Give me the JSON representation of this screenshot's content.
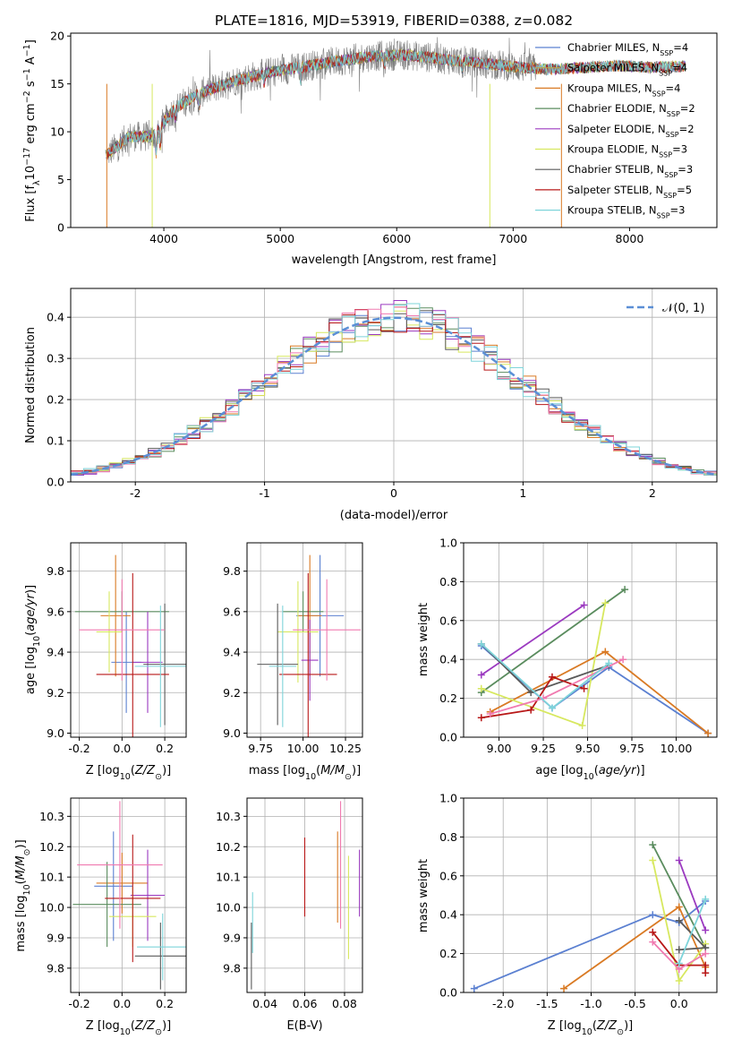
{
  "figure_title": "PLATE=1816, MJD=53919, FIBERID=0388, z=0.082",
  "colors": [
    "#5b80d1",
    "#d97a24",
    "#5a8c5e",
    "#9b3ac0",
    "#d7e85f",
    "#5a5a5a",
    "#b81818",
    "#f07ab0",
    "#7ed4da"
  ],
  "chart_data": [
    {
      "id": "spectrum",
      "type": "line",
      "title": "PLATE=1816, MJD=53919, FIBERID=0388, z=0.082",
      "xlabel": "wavelength [Angstrom, rest frame]",
      "ylabel": "Flux [fλ10⁻¹⁷ erg cm⁻² s⁻¹ A⁻¹]",
      "xlim": [
        3200,
        8750
      ],
      "ylim": [
        0,
        20.3
      ],
      "xticks": [
        4000,
        5000,
        6000,
        7000,
        8000
      ],
      "yticks": [
        0,
        5,
        10,
        15,
        20
      ],
      "grid": false,
      "legend_position": "right",
      "continuum_x": [
        3500,
        3700,
        3900,
        4100,
        4300,
        4600,
        4900,
        5200,
        5500,
        5800,
        6100,
        6400,
        6700,
        7000,
        7300,
        7600,
        7900,
        8200,
        8500
      ],
      "continuum_y": [
        7.5,
        9.5,
        9.5,
        12.5,
        14.0,
        15.3,
        16.2,
        16.8,
        17.4,
        17.9,
        18.0,
        17.6,
        17.2,
        16.8,
        16.5,
        16.7,
        16.9,
        16.7,
        16.9
      ],
      "observed": {
        "name": "data",
        "color": "#7f7f7f",
        "x_range": [
          3520,
          7200
        ]
      },
      "series": [
        {
          "name": "Chabrier MILES",
          "nssp": "4",
          "color": "#5b80d1"
        },
        {
          "name": "Salpeter MILES",
          "nssp": "4",
          "color": "#b8a64e"
        },
        {
          "name": "Kroupa MILES",
          "nssp": "4",
          "color": "#d97a24"
        },
        {
          "name": "Chabrier ELODIE",
          "nssp": "2",
          "color": "#5a8c5e"
        },
        {
          "name": "Salpeter ELODIE",
          "nssp": "2",
          "color": "#9b3ac0"
        },
        {
          "name": "Kroupa ELODIE",
          "nssp": "3",
          "color": "#d7e85f"
        },
        {
          "name": "Chabrier STELIB",
          "nssp": "3",
          "color": "#5a5a5a"
        },
        {
          "name": "Salpeter STELIB",
          "nssp": "5",
          "color": "#b81818"
        },
        {
          "name": "Kroupa STELIB",
          "nssp": "3",
          "color": "#7ed4da"
        }
      ]
    },
    {
      "id": "residuals",
      "type": "line",
      "xlabel": "(data-model)/error",
      "ylabel": "Normed distribution",
      "xlim": [
        -2.5,
        2.5
      ],
      "ylim": [
        0,
        0.47
      ],
      "xticks": [
        -2,
        -1,
        0,
        1,
        2
      ],
      "yticks": [
        0.0,
        0.1,
        0.2,
        0.3,
        0.4
      ],
      "grid": true,
      "legend_position": "top-right",
      "gaussian_label": "𝒩(0, 1)",
      "gaussian_color": "#5b8fd6",
      "histogram_bin_width": 0.1,
      "histogram_colors": [
        "#5b80d1",
        "#d97a24",
        "#5a8c5e",
        "#9b3ac0",
        "#d7e85f",
        "#5a5a5a",
        "#b81818",
        "#f07ab0",
        "#7ed4da"
      ]
    },
    {
      "id": "z-age",
      "type": "scatter",
      "xlabel": "Z [log10(Z/Z⊙)]",
      "ylabel": "age  [log10(age/yr)]",
      "xlim": [
        -0.24,
        0.3
      ],
      "ylim": [
        8.98,
        9.94
      ],
      "xticks": [
        -0.2,
        0.0,
        0.2
      ],
      "yticks": [
        9.0,
        9.2,
        9.4,
        9.6,
        9.8
      ],
      "grid": true,
      "points": [
        {
          "x": 0.02,
          "y": 9.35,
          "xerr": 0.07,
          "yerr": 0.25
        },
        {
          "x": -0.03,
          "y": 9.58,
          "xerr": 0.07,
          "yerr": 0.3
        },
        {
          "x": 0.0,
          "y": 9.6,
          "xerr": 0.22,
          "yerr": 0.1
        },
        {
          "x": 0.12,
          "y": 9.35,
          "xerr": 0.07,
          "yerr": 0.25
        },
        {
          "x": -0.06,
          "y": 9.5,
          "xerr": 0.06,
          "yerr": 0.2
        },
        {
          "x": 0.2,
          "y": 9.34,
          "xerr": 0.1,
          "yerr": 0.3
        },
        {
          "x": 0.05,
          "y": 9.29,
          "xerr": 0.17,
          "yerr": 0.5
        },
        {
          "x": 0.0,
          "y": 9.51,
          "xerr": 0.2,
          "yerr": 0.25
        },
        {
          "x": 0.18,
          "y": 9.33,
          "xerr": 0.12,
          "yerr": 0.3
        }
      ]
    },
    {
      "id": "mass-age",
      "type": "scatter",
      "xlabel": "mass [log10(M/M⊙)]",
      "ylabel": "",
      "xlim": [
        9.67,
        10.35
      ],
      "ylim": [
        8.98,
        9.94
      ],
      "xticks": [
        9.75,
        10.0,
        10.25
      ],
      "yticks": [
        9.0,
        9.2,
        9.4,
        9.6,
        9.8
      ],
      "grid": true,
      "points": [
        {
          "x": 10.1,
          "y": 9.58,
          "xerr": 0.14,
          "yerr": 0.3
        },
        {
          "x": 10.04,
          "y": 9.58,
          "xerr": 0.07,
          "yerr": 0.3
        },
        {
          "x": 10.0,
          "y": 9.6,
          "xerr": 0.12,
          "yerr": 0.1
        },
        {
          "x": 10.04,
          "y": 9.36,
          "xerr": 0.05,
          "yerr": 0.2
        },
        {
          "x": 9.97,
          "y": 9.5,
          "xerr": 0.12,
          "yerr": 0.25
        },
        {
          "x": 9.85,
          "y": 9.34,
          "xerr": 0.12,
          "yerr": 0.3
        },
        {
          "x": 10.03,
          "y": 9.29,
          "xerr": 0.17,
          "yerr": 0.5
        },
        {
          "x": 10.14,
          "y": 9.51,
          "xerr": 0.2,
          "yerr": 0.25
        },
        {
          "x": 9.88,
          "y": 9.33,
          "xerr": 0.08,
          "yerr": 0.3
        }
      ]
    },
    {
      "id": "age-massweight",
      "type": "line",
      "xlabel": "age  [log10(age/yr)]",
      "ylabel": "mass weight",
      "xlim": [
        8.8,
        10.23
      ],
      "ylim": [
        0,
        1.0
      ],
      "xticks": [
        9.0,
        9.25,
        9.5,
        9.75,
        10.0
      ],
      "yticks": [
        0.0,
        0.2,
        0.4,
        0.6,
        0.8,
        1.0
      ],
      "grid": true,
      "series": [
        {
          "color": "#5b80d1",
          "x": [
            8.9,
            9.3,
            9.62,
            10.18
          ],
          "y": [
            0.47,
            0.15,
            0.36,
            0.02
          ]
        },
        {
          "color": "#d97a24",
          "x": [
            8.95,
            9.6,
            10.18
          ],
          "y": [
            0.13,
            0.44,
            0.02
          ]
        },
        {
          "color": "#5a8c5e",
          "x": [
            8.9,
            9.71
          ],
          "y": [
            0.23,
            0.76
          ]
        },
        {
          "color": "#9b3ac0",
          "x": [
            8.9,
            9.48
          ],
          "y": [
            0.32,
            0.68
          ]
        },
        {
          "color": "#d7e85f",
          "x": [
            8.9,
            9.47,
            9.6
          ],
          "y": [
            0.25,
            0.06,
            0.69
          ]
        },
        {
          "color": "#5a5a5a",
          "x": [
            8.9,
            9.18,
            9.62
          ],
          "y": [
            0.48,
            0.23,
            0.37
          ]
        },
        {
          "color": "#b81818",
          "x": [
            8.9,
            9.18,
            9.3,
            9.48
          ],
          "y": [
            0.1,
            0.14,
            0.31,
            0.25
          ]
        },
        {
          "color": "#f07ab0",
          "x": [
            8.95,
            9.25,
            9.7
          ],
          "y": [
            0.12,
            0.2,
            0.4
          ]
        },
        {
          "color": "#7ed4da",
          "x": [
            8.9,
            9.3,
            9.62
          ],
          "y": [
            0.48,
            0.15,
            0.38
          ]
        }
      ]
    },
    {
      "id": "z-mass",
      "type": "scatter",
      "xlabel": "Z [log10(Z/Z⊙)]",
      "ylabel": "mass [log10(M/M⊙)]",
      "xlim": [
        -0.24,
        0.3
      ],
      "ylim": [
        9.72,
        10.36
      ],
      "xticks": [
        -0.2,
        0.0,
        0.2
      ],
      "yticks": [
        9.8,
        9.9,
        10.0,
        10.1,
        10.2,
        10.3
      ],
      "grid": true,
      "points": [
        {
          "x": -0.04,
          "y": 10.07,
          "xerr": 0.09,
          "yerr": 0.18
        },
        {
          "x": 0.0,
          "y": 10.08,
          "xerr": 0.12,
          "yerr": 0.1
        },
        {
          "x": -0.07,
          "y": 10.01,
          "xerr": 0.16,
          "yerr": 0.14
        },
        {
          "x": 0.12,
          "y": 10.04,
          "xerr": 0.08,
          "yerr": 0.15
        },
        {
          "x": 0.05,
          "y": 9.97,
          "xerr": 0.11,
          "yerr": 0.1
        },
        {
          "x": 0.18,
          "y": 9.84,
          "xerr": 0.12,
          "yerr": 0.11
        },
        {
          "x": 0.05,
          "y": 10.03,
          "xerr": 0.13,
          "yerr": 0.21
        },
        {
          "x": -0.01,
          "y": 10.14,
          "xerr": 0.2,
          "yerr": 0.21
        },
        {
          "x": 0.19,
          "y": 9.87,
          "xerr": 0.12,
          "yerr": 0.11
        }
      ]
    },
    {
      "id": "ebv-mass",
      "type": "scatter",
      "xlabel": "E(B-V)",
      "ylabel": "",
      "xlim": [
        0.031,
        0.089
      ],
      "ylim": [
        9.72,
        10.36
      ],
      "xticks": [
        0.04,
        0.06,
        0.08
      ],
      "yticks": [
        9.8,
        9.9,
        10.0,
        10.1,
        10.2,
        10.3
      ],
      "grid": true,
      "points": [
        {
          "x": 0.0338,
          "y": 9.95,
          "xerr": 0,
          "yerr": 0.1
        },
        {
          "x": 0.0332,
          "y": 9.84,
          "xerr": 0,
          "yerr": 0.11
        },
        {
          "x": 0.06,
          "y": 10.1,
          "xerr": 0,
          "yerr": 0.13
        },
        {
          "x": 0.0765,
          "y": 10.1,
          "xerr": 0,
          "yerr": 0.15
        },
        {
          "x": 0.078,
          "y": 10.14,
          "xerr": 0,
          "yerr": 0.21
        },
        {
          "x": 0.082,
          "y": 10.0,
          "xerr": 0,
          "yerr": 0.17
        },
        {
          "x": 0.0875,
          "y": 10.08,
          "xerr": 0,
          "yerr": 0.11
        }
      ],
      "point_colors": [
        "#7ed4da",
        "#5a5a5a",
        "#b81818",
        "#d97a24",
        "#f07ab0",
        "#d7e85f",
        "#9b3ac0"
      ]
    },
    {
      "id": "z-massweight",
      "type": "line",
      "xlabel": "Z [log10(Z/Z⊙)]",
      "ylabel": "mass weight",
      "xlim": [
        -2.45,
        0.43
      ],
      "ylim": [
        0,
        1.0
      ],
      "xticks": [
        -2.0,
        -1.5,
        -1.0,
        -0.5,
        0.0
      ],
      "yticks": [
        0.0,
        0.2,
        0.4,
        0.6,
        0.8,
        1.0
      ],
      "grid": true,
      "series": [
        {
          "color": "#5b80d1",
          "x": [
            -2.33,
            -0.3,
            0.0,
            0.3
          ],
          "y": [
            0.02,
            0.4,
            0.36,
            0.47
          ]
        },
        {
          "color": "#d97a24",
          "x": [
            -1.31,
            0.0,
            0.3
          ],
          "y": [
            0.02,
            0.44,
            0.13
          ]
        },
        {
          "color": "#5a8c5e",
          "x": [
            -0.3,
            0.3
          ],
          "y": [
            0.76,
            0.23
          ]
        },
        {
          "color": "#9b3ac0",
          "x": [
            0.0,
            0.3
          ],
          "y": [
            0.68,
            0.32
          ]
        },
        {
          "color": "#d7e85f",
          "x": [
            -0.3,
            0.0,
            0.3
          ],
          "y": [
            0.68,
            0.06,
            0.25
          ]
        },
        {
          "color": "#5a5a5a",
          "x": [
            0.0,
            0.3,
            0.0
          ],
          "y": [
            0.37,
            0.23,
            0.22
          ]
        },
        {
          "color": "#b81818",
          "x": [
            -0.3,
            0.0,
            0.3,
            0.3
          ],
          "y": [
            0.31,
            0.14,
            0.14,
            0.1
          ]
        },
        {
          "color": "#f07ab0",
          "x": [
            -0.3,
            0.0,
            0.3
          ],
          "y": [
            0.26,
            0.12,
            0.2
          ]
        },
        {
          "color": "#7ed4da",
          "x": [
            0.0,
            0.3
          ],
          "y": [
            0.15,
            0.48
          ]
        }
      ]
    }
  ]
}
